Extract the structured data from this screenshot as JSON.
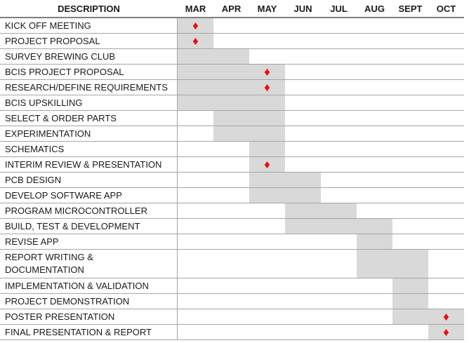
{
  "chart_data": {
    "type": "bar",
    "subtype": "gantt-schedule",
    "description_header": "DESCRIPTION",
    "x_labels": [
      "MAR",
      "APR",
      "MAY",
      "JUN",
      "JUL",
      "AUG",
      "SEPT",
      "OCT"
    ],
    "tasks": [
      {
        "label": "KICK OFF MEETING",
        "start": "MAR",
        "end": "MAR",
        "milestone": "MAR"
      },
      {
        "label": "PROJECT PROPOSAL",
        "start": "MAR",
        "end": "MAR",
        "milestone": "MAR"
      },
      {
        "label": "SURVEY BREWING CLUB",
        "start": "MAR",
        "end": "APR",
        "milestone": null
      },
      {
        "label": "BCIS PROJECT PROPOSAL",
        "start": "MAR",
        "end": "MAY",
        "milestone": "MAY"
      },
      {
        "label": "RESEARCH/DEFINE REQUIREMENTS",
        "start": "MAR",
        "end": "MAY",
        "milestone": "MAY"
      },
      {
        "label": "BCIS UPSKILLING",
        "start": "MAR",
        "end": "MAY",
        "milestone": null
      },
      {
        "label": "SELECT & ORDER PARTS",
        "start": "APR",
        "end": "MAY",
        "milestone": null
      },
      {
        "label": "EXPERIMENTATION",
        "start": "APR",
        "end": "MAY",
        "milestone": null
      },
      {
        "label": "SCHEMATICS",
        "start": "MAY",
        "end": "MAY",
        "milestone": null
      },
      {
        "label": "INTERIM REVIEW & PRESENTATION",
        "start": "MAY",
        "end": "MAY",
        "milestone": "MAY"
      },
      {
        "label": "PCB DESIGN",
        "start": "MAY",
        "end": "JUN",
        "milestone": null
      },
      {
        "label": "DEVELOP SOFTWARE APP",
        "start": "MAY",
        "end": "JUN",
        "milestone": null
      },
      {
        "label": "PROGRAM MICROCONTROLLER",
        "start": "JUN",
        "end": "JUL",
        "milestone": null
      },
      {
        "label": "BUILD, TEST & DEVELOPMENT",
        "start": "JUN",
        "end": "AUG",
        "milestone": null
      },
      {
        "label": "REVISE APP",
        "start": "AUG",
        "end": "AUG",
        "milestone": null
      },
      {
        "label": "REPORT WRITING &\nDOCUMENTATION",
        "start": "AUG",
        "end": "SEPT",
        "milestone": null
      },
      {
        "label": "IMPLEMENTATION & VALIDATION",
        "start": "SEPT",
        "end": "SEPT",
        "milestone": null
      },
      {
        "label": "PROJECT DEMONSTRATION",
        "start": "SEPT",
        "end": "SEPT",
        "milestone": null
      },
      {
        "label": "POSTER PRESENTATION",
        "start": "SEPT",
        "end": "OCT",
        "milestone": "OCT"
      },
      {
        "label": "FINAL PRESENTATION & REPORT",
        "start": "OCT",
        "end": "OCT",
        "milestone": "OCT"
      }
    ]
  },
  "icons": {
    "milestone_diamond": "♦"
  },
  "colors": {
    "bar_fill": "#d9d9d9",
    "milestone_red": "#ee0c0c",
    "gridline": "#a6a6a6",
    "header_rule": "#7f7f7f",
    "text": "#1a1a1a",
    "background": "#ffffff"
  }
}
